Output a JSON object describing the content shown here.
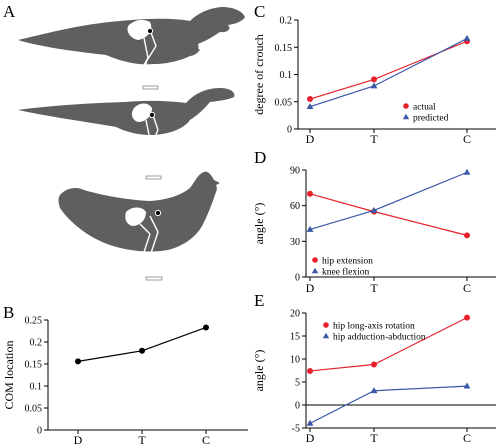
{
  "panel_letters": {
    "a": "A",
    "b": "B",
    "c": "C",
    "d": "D",
    "e": "E"
  },
  "colors": {
    "red": "#e8212b",
    "blue": "#3a58a6",
    "black": "#000000",
    "silhouette": "#5f5f5f",
    "bone": "#ffffff"
  },
  "illustrations": {
    "panel": "A",
    "animals": [
      "tyrannosaur-silhouette",
      "small-theropod-silhouette",
      "chicken-silhouette"
    ],
    "note": ""
  },
  "chart_data": [
    {
      "panel": "B",
      "type": "line",
      "categories": [
        "D",
        "T",
        "C"
      ],
      "series": [
        {
          "values": [
            0.156,
            0.18,
            0.233
          ],
          "color": "#000000",
          "marker": "circle"
        }
      ],
      "ylabel": "COM location",
      "ylim": [
        0,
        0.25
      ],
      "yticks": [
        0,
        0.05,
        0.1,
        0.15,
        0.2,
        0.25
      ],
      "ytick_labels": [
        "0",
        "0.05",
        "0.1",
        "0.15",
        "0.2",
        "0.25"
      ],
      "legend": null
    },
    {
      "panel": "C",
      "type": "line",
      "categories": [
        "D",
        "T",
        "C"
      ],
      "series": [
        {
          "name": "actual",
          "values": [
            0.055,
            0.091,
            0.161
          ],
          "color": "#e8212b",
          "marker": "circle"
        },
        {
          "name": "predicted",
          "values": [
            0.041,
            0.079,
            0.166
          ],
          "color": "#3a58a6",
          "marker": "triangle"
        }
      ],
      "ylabel": "degree of crouch",
      "ylim": [
        0,
        0.2
      ],
      "yticks": [
        0,
        0.05,
        0.1,
        0.15,
        0.2
      ],
      "ytick_labels": [
        "0",
        "0.05",
        "0.1",
        "0.15",
        "0.2"
      ],
      "legend": "bottom-right"
    },
    {
      "panel": "D",
      "type": "line",
      "categories": [
        "D",
        "T",
        "C"
      ],
      "series": [
        {
          "name": "hip extension",
          "values": [
            70,
            55,
            35
          ],
          "color": "#e8212b",
          "marker": "circle"
        },
        {
          "name": "knee flexion",
          "values": [
            40,
            56,
            88
          ],
          "color": "#3a58a6",
          "marker": "triangle"
        }
      ],
      "ylabel": "angle (°)",
      "ylim": [
        0,
        90
      ],
      "yticks": [
        0,
        30,
        60,
        90
      ],
      "ytick_labels": [
        "0",
        "30",
        "60",
        "90"
      ],
      "legend": "bottom-left"
    },
    {
      "panel": "E",
      "type": "line",
      "categories": [
        "D",
        "T",
        "C"
      ],
      "series": [
        {
          "name": "hip long-axis rotation",
          "values": [
            7.4,
            8.8,
            19
          ],
          "color": "#e8212b",
          "marker": "circle"
        },
        {
          "name": "hip adduction-abduction",
          "values": [
            -4,
            3.1,
            4.1
          ],
          "color": "#3a58a6",
          "marker": "triangle"
        }
      ],
      "ylabel": "angle (°)",
      "ylim": [
        -5,
        20
      ],
      "yticks": [
        -5,
        0,
        5,
        10,
        15,
        20
      ],
      "ytick_labels": [
        "-5",
        "0",
        "5",
        "10",
        "15",
        "20"
      ],
      "zero_line": true,
      "legend": "top-left"
    }
  ]
}
